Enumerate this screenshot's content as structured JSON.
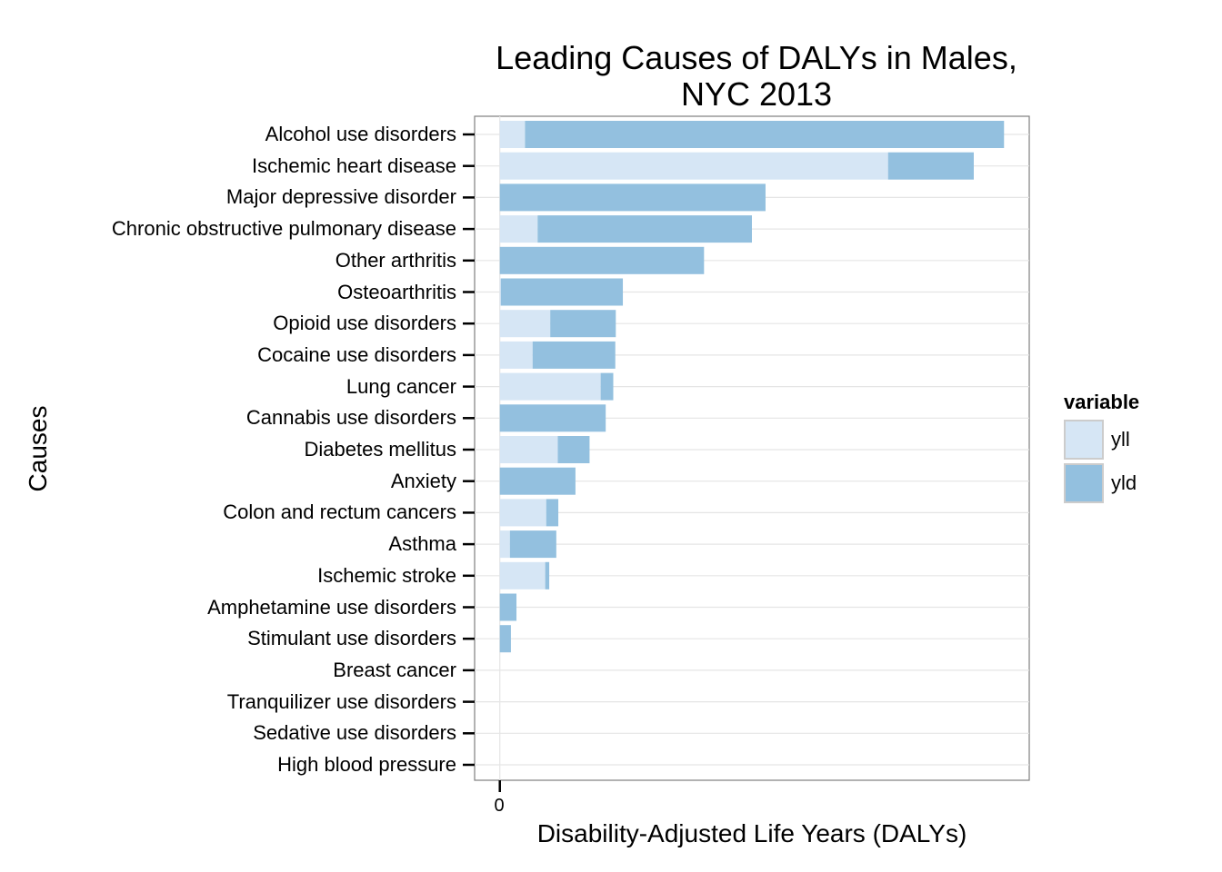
{
  "chart_data": {
    "type": "bar",
    "orientation": "horizontal",
    "stacked": true,
    "title": "Leading Causes of DALYs in Males,",
    "title_line2": "NYC 2013",
    "xlabel": "Disability-Adjusted Life Years (DALYs)",
    "ylabel": "Causes",
    "x_ticks": [
      "0"
    ],
    "xlim": [
      -0.05,
      1.05
    ],
    "grid": true,
    "legend": {
      "title": "variable",
      "placement": "right"
    },
    "categories": [
      "Alcohol use disorders",
      "Ischemic heart disease",
      "Major depressive disorder",
      "Chronic obstructive pulmonary disease",
      "Other arthritis",
      "Osteoarthritis",
      "Opioid use disorders",
      "Cocaine use disorders",
      "Lung cancer",
      "Cannabis use disorders",
      "Diabetes mellitus",
      "Anxiety",
      "Colon and rectum cancers",
      "Asthma",
      "Ischemic stroke",
      "Amphetamine use disorders",
      "Stimulant use disorders",
      "Breast cancer",
      "Tranquilizer use disorders",
      "Sedative use disorders",
      "High blood pressure"
    ],
    "series": [
      {
        "name": "yll",
        "color": "#d6e6f5",
        "values": [
          0.05,
          0.77,
          0.0,
          0.075,
          0.0,
          0.002,
          0.1,
          0.065,
          0.2,
          0.0,
          0.115,
          0.0,
          0.092,
          0.02,
          0.09,
          0.0,
          0.0,
          0.0,
          0.0,
          0.0,
          0.0
        ]
      },
      {
        "name": "yld",
        "color": "#93c0df",
        "values": [
          0.95,
          0.17,
          0.527,
          0.425,
          0.405,
          0.242,
          0.13,
          0.164,
          0.025,
          0.21,
          0.063,
          0.15,
          0.024,
          0.092,
          0.008,
          0.033,
          0.022,
          0.0,
          0.0,
          0.0,
          0.0
        ]
      }
    ]
  }
}
